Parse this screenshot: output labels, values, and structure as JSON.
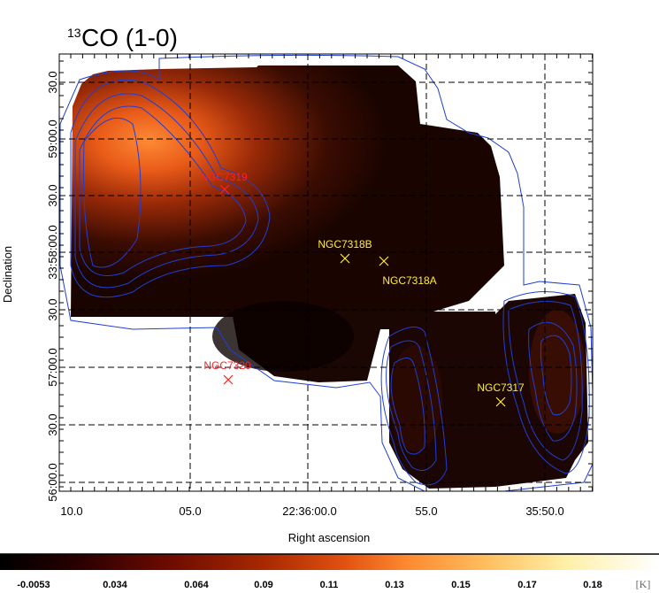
{
  "chart_data": {
    "type": "heatmap",
    "title": {
      "superscript": "13",
      "main": "CO (1-0)"
    },
    "xlabel": "Right ascension",
    "ylabel": "Declination",
    "x_ticks": [
      "10.0",
      "05.0",
      "22:36:00.0",
      "55.0",
      "35:50.0"
    ],
    "y_ticks": [
      "56:00.0",
      "30.0",
      "57:00.0",
      "30.0",
      "33:58:00.0",
      "30.0",
      "59:00.0",
      "30.0"
    ],
    "colorbar": {
      "ticks": [
        "-0.0053",
        "0.034",
        "0.064",
        "0.09",
        "0.11",
        "0.13",
        "0.15",
        "0.17",
        "0.18"
      ],
      "unit": "[K]",
      "range": [
        -0.0053,
        0.19
      ]
    },
    "sources": [
      {
        "name": "NGC7319",
        "color": "#ff2020"
      },
      {
        "name": "NGC7320",
        "color": "#ff2020"
      },
      {
        "name": "NGC7318B",
        "color": "#ffee33"
      },
      {
        "name": "NGC7318A",
        "color": "#ffee33"
      },
      {
        "name": "NGC7317",
        "color": "#ffee33"
      }
    ],
    "contour_color": "#1f3fd6",
    "grid": "dashed"
  }
}
